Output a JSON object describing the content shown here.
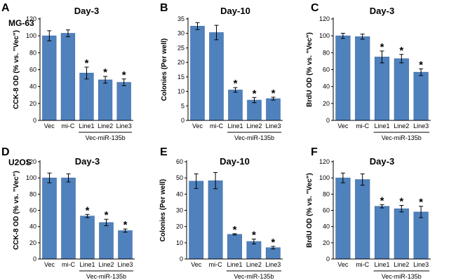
{
  "colors": {
    "bar": "#4f81bd",
    "bar_edge": "#3a6aa6",
    "axis": "#000000"
  },
  "panels": [
    {
      "letter": "A",
      "cell_line": "MG-63"
    },
    {
      "letter": "B",
      "cell_line": ""
    },
    {
      "letter": "C",
      "cell_line": ""
    },
    {
      "letter": "D",
      "cell_line": "U2OS"
    },
    {
      "letter": "E",
      "cell_line": ""
    },
    {
      "letter": "F",
      "cell_line": ""
    }
  ],
  "chart_data": [
    {
      "type": "bar",
      "title": "Day-3",
      "ylabel": "CCK-8 OD (% vs. \"Vec\")",
      "categories": [
        "Vec",
        "mi-C",
        "Line1",
        "Line2",
        "Line3"
      ],
      "values": [
        100,
        103,
        56,
        48,
        45
      ],
      "errors": [
        6,
        4,
        7,
        4,
        4
      ],
      "significant": [
        false,
        false,
        true,
        true,
        true
      ],
      "ylim": [
        0,
        120
      ],
      "yticks": [
        0,
        20,
        40,
        60,
        80,
        100,
        120
      ],
      "group_label": "Vec-miR-135b",
      "star": "*"
    },
    {
      "type": "bar",
      "title": "Day-10",
      "ylabel": "Colonies (Per well)",
      "categories": [
        "Vec",
        "mi-C",
        "Line1",
        "Line2",
        "Line3"
      ],
      "values": [
        32.5,
        30.3,
        10.5,
        7.0,
        7.5
      ],
      "errors": [
        1.2,
        2.5,
        0.8,
        0.9,
        0.5
      ],
      "significant": [
        false,
        false,
        true,
        true,
        true
      ],
      "ylim": [
        0,
        35
      ],
      "yticks": [
        0,
        5,
        10,
        15,
        20,
        25,
        30,
        35
      ],
      "group_label": "Vec-miR-135b",
      "star": "*"
    },
    {
      "type": "bar",
      "title": "Day-3",
      "ylabel": "BrdU OD (% vs. \"Vec\")",
      "categories": [
        "Vec",
        "mi-C",
        "Line1",
        "Line2",
        "Line3"
      ],
      "values": [
        100,
        99,
        75,
        73,
        57
      ],
      "errors": [
        3,
        3,
        7,
        5,
        4
      ],
      "significant": [
        false,
        false,
        true,
        true,
        true
      ],
      "ylim": [
        0,
        120
      ],
      "yticks": [
        0,
        20,
        40,
        60,
        80,
        100,
        120
      ],
      "group_label": "Vec-miR-135b",
      "star": "*"
    },
    {
      "type": "bar",
      "title": "Day-3",
      "ylabel": "CCK-8 OD (% vs. \"Vec\")",
      "categories": [
        "Vec",
        "mi-C",
        "Line1",
        "Line2",
        "Line3"
      ],
      "values": [
        100,
        100,
        53,
        45,
        35
      ],
      "errors": [
        6,
        5,
        2,
        4,
        2
      ],
      "significant": [
        false,
        false,
        true,
        true,
        true
      ],
      "ylim": [
        0,
        120
      ],
      "yticks": [
        0,
        20,
        40,
        60,
        80,
        100,
        120
      ],
      "group_label": "Vec-miR-135b",
      "star": "*"
    },
    {
      "type": "bar",
      "title": "Day-10",
      "ylabel": "Colonies (Per well)",
      "categories": [
        "Vec",
        "mi-C",
        "Line1",
        "Line2",
        "Line3"
      ],
      "values": [
        48,
        48.3,
        15.2,
        10.8,
        7.0
      ],
      "errors": [
        4.5,
        5.0,
        0.4,
        1.5,
        0.8
      ],
      "significant": [
        false,
        false,
        true,
        true,
        true
      ],
      "ylim": [
        0,
        60
      ],
      "yticks": [
        0,
        10,
        20,
        30,
        40,
        50,
        60
      ],
      "group_label": "Vec-miR-135b",
      "star": "*"
    },
    {
      "type": "bar",
      "title": "Day-3",
      "ylabel": "BrdU OD (% vs. \"Vec\")",
      "categories": [
        "Vec",
        "mi-C",
        "Line1",
        "Line2",
        "Line3"
      ],
      "values": [
        100,
        98,
        65,
        62,
        58
      ],
      "errors": [
        6,
        7,
        2,
        4,
        7
      ],
      "significant": [
        false,
        false,
        true,
        true,
        true
      ],
      "ylim": [
        0,
        120
      ],
      "yticks": [
        0,
        20,
        40,
        60,
        80,
        100,
        120
      ],
      "group_label": "Vec-miR-135b",
      "star": "*"
    }
  ]
}
